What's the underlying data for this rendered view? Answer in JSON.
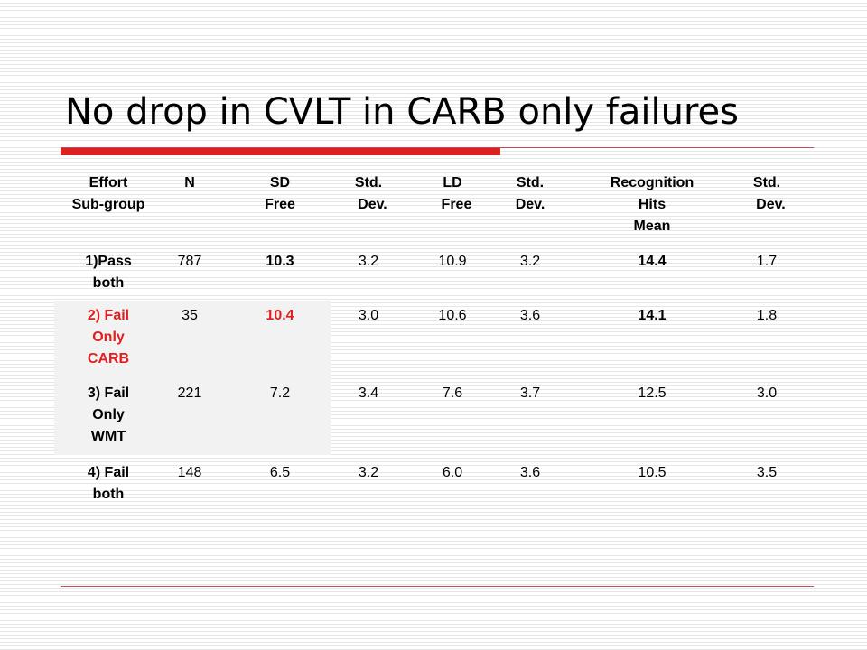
{
  "slide": {
    "title": "No drop in CVLT in CARB only failures",
    "accent_color": "#e02020",
    "line_color": "#c0504d"
  },
  "table": {
    "columns": [
      {
        "label": "Effort Sub-group"
      },
      {
        "label": "N"
      },
      {
        "label": "SD Free"
      },
      {
        "label": "Std. Dev."
      },
      {
        "label": "LD Free"
      },
      {
        "label": "Std. Dev."
      },
      {
        "label": "Recognition Hits Mean"
      },
      {
        "label": "Std. Dev."
      }
    ],
    "rows": [
      {
        "label": "1)Pass both",
        "values": [
          "787",
          "10.3",
          "3.2",
          "10.9",
          "3.2",
          "14.4",
          "1.7"
        ]
      },
      {
        "label": "2) Fail Only CARB",
        "values": [
          "35",
          "10.4",
          "3.0",
          "10.6",
          "3.6",
          "14.1",
          "1.8"
        ]
      },
      {
        "label": "3) Fail Only WMT",
        "values": [
          "221",
          "7.2",
          "3.4",
          "7.6",
          "3.7",
          "12.5",
          "3.0"
        ]
      },
      {
        "label": "4) Fail both",
        "values": [
          "148",
          "6.5",
          "3.2",
          "6.0",
          "3.6",
          "10.5",
          "3.5"
        ]
      }
    ]
  }
}
